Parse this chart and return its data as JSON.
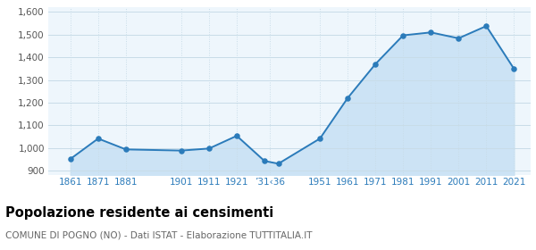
{
  "years": [
    1861,
    1871,
    1881,
    1901,
    1911,
    1921,
    1931,
    1936,
    1951,
    1961,
    1971,
    1981,
    1991,
    2001,
    2011,
    2021
  ],
  "population": [
    951,
    1041,
    993,
    988,
    997,
    1053,
    942,
    930,
    1041,
    1220,
    1370,
    1497,
    1510,
    1484,
    1538,
    1349
  ],
  "xlim": [
    1853,
    2027
  ],
  "ylim": [
    880,
    1620
  ],
  "yticks": [
    900,
    1000,
    1100,
    1200,
    1300,
    1400,
    1500,
    1600
  ],
  "xtick_positions": [
    1861,
    1871,
    1881,
    1901,
    1911,
    1921,
    1933,
    1951,
    1961,
    1971,
    1981,
    1991,
    2001,
    2011,
    2021
  ],
  "xtick_labels": [
    "1861",
    "1871",
    "1881",
    "1901",
    "1911",
    "1921",
    "’31‹36",
    "1951",
    "1961",
    "1971",
    "1981",
    "1991",
    "2001",
    "2011",
    "2021"
  ],
  "line_color": "#2b7bba",
  "fill_color": "#cce3f5",
  "marker_color": "#2b7bba",
  "background_color": "#eef6fc",
  "grid_color_h": "#c8dce8",
  "grid_color_v": "#c8dce8",
  "title": "Popolazione residente ai censimenti",
  "subtitle": "COMUNE DI POGNO (NO) - Dati ISTAT - Elaborazione TUTTITALIA.IT",
  "title_fontsize": 10.5,
  "subtitle_fontsize": 7.5,
  "tick_color": "#2b7bba",
  "ytick_color": "#555555"
}
